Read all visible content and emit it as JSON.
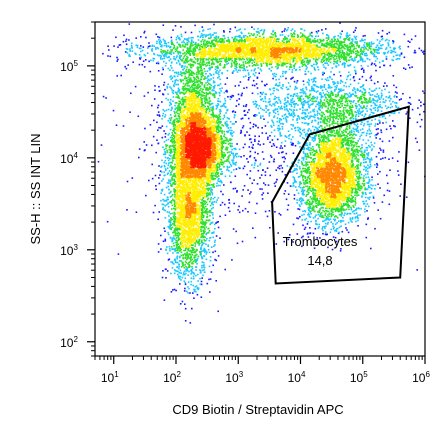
{
  "chart_data": {
    "type": "scatter",
    "title": "",
    "xlabel": "CD9 Biotin / Streptavidin APC",
    "ylabel": "SS-H :: SS INT LIN",
    "x_scale": "log",
    "y_scale": "log",
    "xlim": [
      5,
      1000000
    ],
    "ylim": [
      70,
      300000
    ],
    "x_ticks": [
      {
        "base": "10",
        "exp": "1",
        "value": 10
      },
      {
        "base": "10",
        "exp": "2",
        "value": 100
      },
      {
        "base": "10",
        "exp": "3",
        "value": 1000
      },
      {
        "base": "10",
        "exp": "4",
        "value": 10000
      },
      {
        "base": "10",
        "exp": "5",
        "value": 100000
      },
      {
        "base": "10",
        "exp": "6",
        "value": 1000000
      }
    ],
    "y_ticks": [
      {
        "base": "10",
        "exp": "2",
        "value": 100
      },
      {
        "base": "10",
        "exp": "3",
        "value": 1000
      },
      {
        "base": "10",
        "exp": "4",
        "value": 10000
      },
      {
        "base": "10",
        "exp": "5",
        "value": 100000
      }
    ],
    "density_colormap": [
      "#1a1aff",
      "#19c8ff",
      "#2ee02e",
      "#ffee00",
      "#ff8800",
      "#ff1a00"
    ],
    "populations": [
      {
        "center_x": 220,
        "center_y": 13000,
        "log_spread_x": 0.22,
        "log_spread_y": 0.22,
        "weight": 3000
      },
      {
        "center_x": 160,
        "center_y": 2500,
        "log_spread_x": 0.18,
        "log_spread_y": 0.35,
        "weight": 2200
      },
      {
        "center_x": 180,
        "center_y": 45000,
        "log_spread_x": 0.2,
        "log_spread_y": 0.25,
        "weight": 900
      },
      {
        "center_x": 30000,
        "center_y": 6000,
        "log_spread_x": 0.25,
        "log_spread_y": 0.25,
        "weight": 2400
      },
      {
        "center_x": 50000,
        "center_y": 12000,
        "log_spread_x": 0.3,
        "log_spread_y": 0.3,
        "weight": 700
      },
      {
        "center_x": 3000,
        "center_y": 150000,
        "log_spread_x": 0.95,
        "log_spread_y": 0.09,
        "weight": 3200
      },
      {
        "center_x": 30000,
        "center_y": 40000,
        "log_spread_x": 0.6,
        "log_spread_y": 0.15,
        "weight": 900
      },
      {
        "center_x": 2000,
        "center_y": 20000,
        "log_spread_x": 1.0,
        "log_spread_y": 0.5,
        "weight": 1000
      }
    ],
    "gate": {
      "name": "Trombocytes",
      "value": "14,8",
      "vertices": [
        [
          14000,
          18000
        ],
        [
          550000,
          36000
        ],
        [
          400000,
          500
        ],
        [
          4000,
          430
        ],
        [
          3500,
          3300
        ]
      ]
    }
  }
}
